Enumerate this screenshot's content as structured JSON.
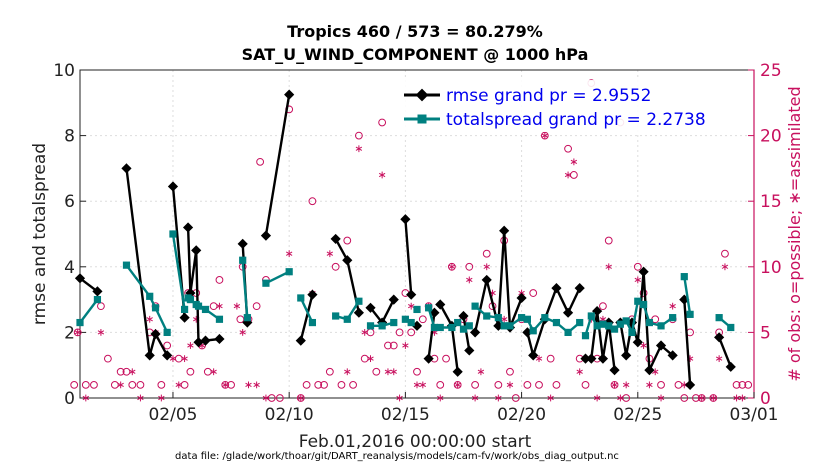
{
  "chart_data": {
    "type": "line",
    "title_line1": "Tropics 460 / 573 = 80.279%",
    "title_line2": "SAT_U_WIND_COMPONENT @ 1000 hPa",
    "ylabel_left": "rmse and totalspread",
    "ylabel_right": "# of obs: o=possible; ∗=assimilated",
    "xlabel": "Feb.01,2016 00:00:00 start",
    "footer": "data file: /glade/work/thoar/git/DART_reanalysis/models/cam-fv/work/obs_diag_output.nc",
    "ylim_left": [
      0,
      10
    ],
    "ylim_right": [
      0,
      25
    ],
    "xlim": [
      1,
      30
    ],
    "yticks_left": [
      "0",
      "2",
      "4",
      "6",
      "8",
      "10"
    ],
    "yticks_right": [
      "0",
      "5",
      "10",
      "15",
      "20",
      "25"
    ],
    "xticks": [
      {
        "x": 5,
        "label": "02/05"
      },
      {
        "x": 10,
        "label": "02/10"
      },
      {
        "x": 15,
        "label": "02/15"
      },
      {
        "x": 20,
        "label": "02/20"
      },
      {
        "x": 25,
        "label": "02/25"
      },
      {
        "x": 30,
        "label": "03/01"
      }
    ],
    "colors": {
      "rmse": "#000000",
      "spread": "#008080",
      "obs": "#c8105e",
      "legend_text": "#0000ee"
    },
    "series": [
      {
        "name": "rmse grand pr = 2.9552",
        "color": "#000000",
        "points": [
          [
            1.0,
            3.65
          ],
          [
            1.75,
            3.25
          ],
          [
            3.0,
            7.0
          ],
          [
            4.0,
            1.3
          ],
          [
            4.25,
            1.95
          ],
          [
            4.75,
            1.3
          ],
          [
            5.0,
            6.45
          ],
          [
            5.5,
            2.45
          ],
          [
            5.65,
            5.2
          ],
          [
            5.75,
            3.2
          ],
          [
            6.0,
            4.5
          ],
          [
            6.1,
            1.7
          ],
          [
            6.4,
            1.75
          ],
          [
            7.0,
            1.8
          ],
          [
            8.0,
            4.7
          ],
          [
            8.2,
            2.3
          ],
          [
            9.0,
            4.95
          ],
          [
            10.0,
            9.25
          ],
          [
            10.5,
            1.75
          ],
          [
            11.0,
            3.15
          ],
          [
            12.0,
            4.85
          ],
          [
            12.5,
            4.2
          ],
          [
            13.0,
            2.6
          ],
          [
            13.5,
            2.75
          ],
          [
            14.0,
            2.3
          ],
          [
            14.5,
            3.0
          ],
          [
            15.0,
            5.45
          ],
          [
            15.25,
            3.15
          ],
          [
            15.5,
            2.2
          ],
          [
            16.0,
            1.2
          ],
          [
            16.25,
            2.6
          ],
          [
            16.5,
            2.85
          ],
          [
            17.0,
            2.2
          ],
          [
            17.25,
            0.8
          ],
          [
            17.5,
            2.5
          ],
          [
            17.75,
            1.45
          ],
          [
            18.0,
            2.0
          ],
          [
            18.5,
            3.6
          ],
          [
            19.0,
            2.2
          ],
          [
            19.25,
            5.1
          ],
          [
            19.5,
            2.15
          ],
          [
            20.0,
            3.05
          ],
          [
            20.25,
            2.0
          ],
          [
            20.5,
            1.3
          ],
          [
            21.0,
            2.4
          ],
          [
            21.5,
            3.35
          ],
          [
            22.0,
            2.6
          ],
          [
            22.5,
            3.35
          ],
          [
            22.75,
            1.2
          ],
          [
            23.0,
            1.2
          ],
          [
            23.25,
            2.65
          ],
          [
            23.5,
            1.2
          ],
          [
            23.75,
            2.3
          ],
          [
            24.0,
            0.85
          ],
          [
            24.25,
            2.3
          ],
          [
            24.5,
            1.3
          ],
          [
            24.75,
            2.3
          ],
          [
            25.0,
            1.7
          ],
          [
            25.25,
            3.85
          ],
          [
            25.5,
            0.85
          ],
          [
            26.0,
            1.6
          ],
          [
            26.5,
            1.3
          ],
          [
            27.0,
            3.0
          ],
          [
            27.25,
            0.4
          ],
          [
            28.5,
            1.85
          ],
          [
            29.0,
            0.95
          ]
        ],
        "breaks": [
          2,
          6,
          8,
          14,
          16,
          18,
          20,
          23,
          26,
          28,
          29,
          31,
          34,
          36,
          42,
          48,
          54,
          62,
          64
        ]
      },
      {
        "name": "totalspread grand pr = 2.2738",
        "color": "#008080",
        "points": [
          [
            1.0,
            2.3
          ],
          [
            1.75,
            3.0
          ],
          [
            3.0,
            4.05
          ],
          [
            4.0,
            3.1
          ],
          [
            4.25,
            2.75
          ],
          [
            4.75,
            2.0
          ],
          [
            5.0,
            5.0
          ],
          [
            5.5,
            2.7
          ],
          [
            5.65,
            3.05
          ],
          [
            5.75,
            3.0
          ],
          [
            6.0,
            2.85
          ],
          [
            6.1,
            2.8
          ],
          [
            6.4,
            2.7
          ],
          [
            7.0,
            2.4
          ],
          [
            8.0,
            4.2
          ],
          [
            8.2,
            2.45
          ],
          [
            9.0,
            3.5
          ],
          [
            10.0,
            3.85
          ],
          [
            10.5,
            3.05
          ],
          [
            11.0,
            2.3
          ],
          [
            12.0,
            2.5
          ],
          [
            12.5,
            2.4
          ],
          [
            13.0,
            2.95
          ],
          [
            13.5,
            2.2
          ],
          [
            14.0,
            2.2
          ],
          [
            14.5,
            2.3
          ],
          [
            15.0,
            2.4
          ],
          [
            15.25,
            2.3
          ],
          [
            15.5,
            2.7
          ],
          [
            16.0,
            2.75
          ],
          [
            16.25,
            2.15
          ],
          [
            16.5,
            2.15
          ],
          [
            17.0,
            2.15
          ],
          [
            17.25,
            2.3
          ],
          [
            17.5,
            2.1
          ],
          [
            17.75,
            2.2
          ],
          [
            18.0,
            2.8
          ],
          [
            18.5,
            2.5
          ],
          [
            19.0,
            2.45
          ],
          [
            19.25,
            2.2
          ],
          [
            19.5,
            2.2
          ],
          [
            20.0,
            2.45
          ],
          [
            20.25,
            2.4
          ],
          [
            20.5,
            2.05
          ],
          [
            21.0,
            2.45
          ],
          [
            21.5,
            2.3
          ],
          [
            22.0,
            2.0
          ],
          [
            22.5,
            2.3
          ],
          [
            22.75,
            1.9
          ],
          [
            23.0,
            2.5
          ],
          [
            23.25,
            2.2
          ],
          [
            23.5,
            2.25
          ],
          [
            23.75,
            2.2
          ],
          [
            24.0,
            2.1
          ],
          [
            24.25,
            2.25
          ],
          [
            24.5,
            2.35
          ],
          [
            24.75,
            2.0
          ],
          [
            25.0,
            2.95
          ],
          [
            25.25,
            2.85
          ],
          [
            25.5,
            2.3
          ],
          [
            26.0,
            2.2
          ],
          [
            26.5,
            2.45
          ],
          [
            27.0,
            3.7
          ],
          [
            27.25,
            2.55
          ],
          [
            28.5,
            2.45
          ],
          [
            29.0,
            2.15
          ]
        ],
        "breaks": [
          2,
          6,
          8,
          14,
          16,
          18,
          20,
          23,
          26,
          28,
          29,
          31,
          34,
          36,
          42,
          48,
          54,
          62,
          64
        ]
      }
    ],
    "obs_possible": [
      [
        0.75,
        1
      ],
      [
        0.9,
        5
      ],
      [
        1.25,
        1
      ],
      [
        1.6,
        1
      ],
      [
        1.9,
        7
      ],
      [
        2.2,
        3
      ],
      [
        2.5,
        1
      ],
      [
        2.75,
        2
      ],
      [
        3.0,
        2
      ],
      [
        3.25,
        1
      ],
      [
        3.6,
        1
      ],
      [
        4.0,
        5
      ],
      [
        4.25,
        7
      ],
      [
        4.5,
        1
      ],
      [
        4.75,
        4
      ],
      [
        5.25,
        3
      ],
      [
        5.5,
        1
      ],
      [
        5.65,
        8
      ],
      [
        5.75,
        2
      ],
      [
        6.0,
        8
      ],
      [
        6.25,
        4
      ],
      [
        6.5,
        2
      ],
      [
        6.75,
        7
      ],
      [
        7.0,
        9
      ],
      [
        7.25,
        1
      ],
      [
        7.5,
        1
      ],
      [
        7.9,
        6
      ],
      [
        8.0,
        10
      ],
      [
        8.25,
        6
      ],
      [
        8.6,
        7
      ],
      [
        8.75,
        18
      ],
      [
        9.0,
        9
      ],
      [
        9.25,
        0
      ],
      [
        9.6,
        0
      ],
      [
        10.0,
        22
      ],
      [
        10.5,
        0
      ],
      [
        10.75,
        1
      ],
      [
        11.0,
        15
      ],
      [
        11.25,
        1
      ],
      [
        11.5,
        1
      ],
      [
        11.75,
        2
      ],
      [
        12.0,
        10
      ],
      [
        12.25,
        1
      ],
      [
        12.5,
        12
      ],
      [
        12.75,
        1
      ],
      [
        13.0,
        20
      ],
      [
        13.25,
        3
      ],
      [
        13.5,
        5
      ],
      [
        13.75,
        2
      ],
      [
        14.0,
        21
      ],
      [
        14.25,
        4
      ],
      [
        14.5,
        4
      ],
      [
        14.75,
        5
      ],
      [
        15.0,
        8
      ],
      [
        15.25,
        5
      ],
      [
        15.5,
        2
      ],
      [
        15.75,
        6
      ],
      [
        16.0,
        7
      ],
      [
        16.25,
        3
      ],
      [
        16.5,
        1
      ],
      [
        16.75,
        3
      ],
      [
        17.0,
        10
      ],
      [
        17.25,
        1
      ],
      [
        17.5,
        6
      ],
      [
        17.75,
        10
      ],
      [
        18.0,
        1
      ],
      [
        18.5,
        11
      ],
      [
        18.75,
        7
      ],
      [
        19.0,
        1
      ],
      [
        19.25,
        12
      ],
      [
        19.5,
        2
      ],
      [
        19.75,
        0
      ],
      [
        20.0,
        6
      ],
      [
        20.25,
        1
      ],
      [
        20.5,
        8
      ],
      [
        20.75,
        1
      ],
      [
        21.0,
        20
      ],
      [
        21.25,
        3
      ],
      [
        21.5,
        1
      ],
      [
        22.0,
        19
      ],
      [
        22.25,
        17
      ],
      [
        22.5,
        3
      ],
      [
        22.75,
        1
      ],
      [
        23.0,
        24
      ],
      [
        23.25,
        3
      ],
      [
        23.5,
        7
      ],
      [
        23.75,
        12
      ],
      [
        24.0,
        1
      ],
      [
        24.25,
        21
      ],
      [
        24.5,
        0
      ],
      [
        24.75,
        6
      ],
      [
        25.0,
        10
      ],
      [
        25.25,
        8
      ],
      [
        25.5,
        3
      ],
      [
        25.75,
        6
      ],
      [
        26.0,
        1
      ],
      [
        26.5,
        6
      ],
      [
        26.75,
        1
      ],
      [
        27.0,
        0
      ],
      [
        27.25,
        5
      ],
      [
        27.5,
        0
      ],
      [
        27.75,
        0
      ],
      [
        28.25,
        0
      ],
      [
        28.5,
        5
      ],
      [
        28.75,
        11
      ],
      [
        29.25,
        1
      ],
      [
        29.5,
        1
      ],
      [
        29.75,
        1
      ]
    ],
    "obs_assimilated": [
      [
        0.9,
        5
      ],
      [
        1.25,
        0
      ],
      [
        1.9,
        5
      ],
      [
        2.75,
        1
      ],
      [
        3.25,
        2
      ],
      [
        3.6,
        0
      ],
      [
        4.0,
        6
      ],
      [
        4.25,
        5
      ],
      [
        4.5,
        0
      ],
      [
        5.0,
        3
      ],
      [
        5.25,
        1
      ],
      [
        5.5,
        3
      ],
      [
        5.75,
        4
      ],
      [
        6.0,
        6
      ],
      [
        6.25,
        4
      ],
      [
        6.75,
        2
      ],
      [
        7.0,
        7
      ],
      [
        7.25,
        1
      ],
      [
        7.75,
        7
      ],
      [
        8.0,
        5
      ],
      [
        8.25,
        1
      ],
      [
        8.6,
        1
      ],
      [
        9.0,
        0
      ],
      [
        10.0,
        11
      ],
      [
        10.5,
        0
      ],
      [
        11.0,
        8
      ],
      [
        11.75,
        11
      ],
      [
        12.5,
        2
      ],
      [
        13.0,
        19
      ],
      [
        13.25,
        5
      ],
      [
        13.5,
        3
      ],
      [
        14.0,
        17
      ],
      [
        14.25,
        2
      ],
      [
        14.5,
        2
      ],
      [
        14.75,
        0
      ],
      [
        15.0,
        4
      ],
      [
        15.25,
        7
      ],
      [
        15.5,
        1
      ],
      [
        15.75,
        1
      ],
      [
        16.0,
        7
      ],
      [
        16.25,
        5
      ],
      [
        16.5,
        0
      ],
      [
        17.0,
        10
      ],
      [
        17.25,
        1
      ],
      [
        17.75,
        9
      ],
      [
        18.0,
        0
      ],
      [
        18.25,
        2
      ],
      [
        18.5,
        10
      ],
      [
        18.75,
        8
      ],
      [
        19.0,
        0
      ],
      [
        19.25,
        6
      ],
      [
        19.5,
        1
      ],
      [
        20.0,
        8
      ],
      [
        20.25,
        5
      ],
      [
        20.75,
        3
      ],
      [
        21.0,
        20
      ],
      [
        21.25,
        0
      ],
      [
        22.0,
        17
      ],
      [
        22.25,
        18
      ],
      [
        22.5,
        2
      ],
      [
        23.0,
        6
      ],
      [
        23.25,
        0
      ],
      [
        23.5,
        6
      ],
      [
        23.75,
        10
      ],
      [
        24.0,
        1
      ],
      [
        24.25,
        0
      ],
      [
        24.5,
        1
      ],
      [
        24.75,
        5
      ],
      [
        25.0,
        9
      ],
      [
        25.25,
        4
      ],
      [
        25.5,
        1
      ],
      [
        25.75,
        2
      ],
      [
        26.0,
        0
      ],
      [
        26.5,
        7
      ],
      [
        27.0,
        1
      ],
      [
        27.25,
        3
      ],
      [
        27.75,
        0
      ],
      [
        28.25,
        0
      ],
      [
        28.5,
        3
      ],
      [
        28.75,
        10
      ],
      [
        29.25,
        0
      ],
      [
        29.5,
        0
      ]
    ]
  }
}
